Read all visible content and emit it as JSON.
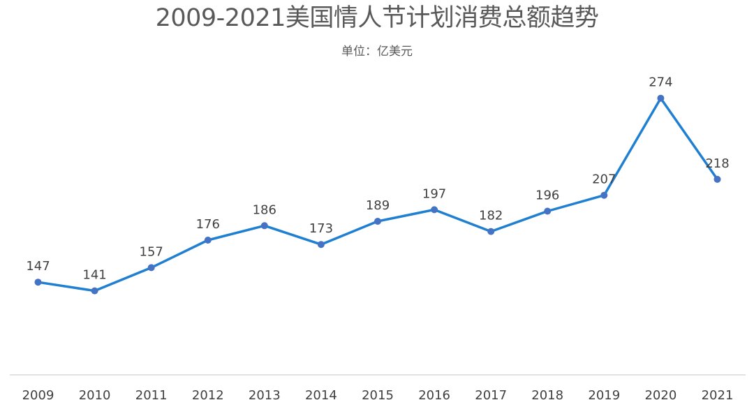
{
  "chart_data": {
    "type": "line",
    "title": "2009-2021美国情人节计划消费总额趋势",
    "subtitle": "单位：亿美元",
    "categories": [
      "2009",
      "2010",
      "2011",
      "2012",
      "2013",
      "2014",
      "2015",
      "2016",
      "2017",
      "2018",
      "2019",
      "2020",
      "2021"
    ],
    "series": [
      {
        "values": [
          147,
          141,
          157,
          176,
          186,
          173,
          189,
          197,
          182,
          196,
          207,
          274,
          218
        ]
      }
    ],
    "ylim": [
      83,
      296
    ],
    "grid": false,
    "legend": "none",
    "data_labels": true,
    "colors": {
      "line": "#1f7fd1",
      "marker": "#4472c4",
      "axis": "#d9d9d9",
      "text": "#404040",
      "title": "#595959"
    }
  }
}
